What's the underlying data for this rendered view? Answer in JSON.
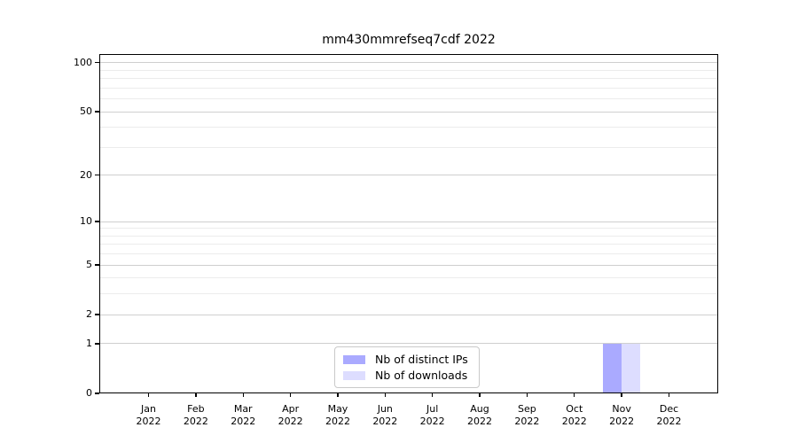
{
  "chart_data": {
    "type": "bar",
    "title": "mm430mmrefseq7cdf 2022",
    "categories": [
      "Jan",
      "Feb",
      "Mar",
      "Apr",
      "May",
      "Jun",
      "Jul",
      "Aug",
      "Sep",
      "Oct",
      "Nov",
      "Dec"
    ],
    "category_year": "2022",
    "series": [
      {
        "name": "Nb of distinct IPs",
        "color": "#aaaaff",
        "values": [
          0,
          0,
          0,
          0,
          0,
          0,
          0,
          0,
          0,
          0,
          1,
          0
        ]
      },
      {
        "name": "Nb of downloads",
        "color": "#ddddff",
        "values": [
          0,
          0,
          0,
          0,
          0,
          0,
          0,
          0,
          0,
          0,
          1,
          0
        ]
      }
    ],
    "xlabel": "",
    "ylabel": "",
    "yscale": "log1p",
    "ylim": [
      0,
      113
    ],
    "ytick_values": [
      0,
      1,
      2,
      5,
      10,
      20,
      50,
      100
    ],
    "ytick_labels": [
      "0",
      "1",
      "2",
      "5",
      "10",
      "20",
      "50",
      "100"
    ],
    "minor_grid_values": [
      3,
      4,
      6,
      7,
      8,
      9,
      30,
      40,
      60,
      70,
      80,
      90
    ],
    "grid": "on",
    "legend_position": "lower center",
    "colors": {
      "major_grid": "#cfcfcf",
      "minor_grid": "#ececec",
      "axis": "#000000",
      "text": "#000000",
      "background": "#ffffff"
    }
  }
}
